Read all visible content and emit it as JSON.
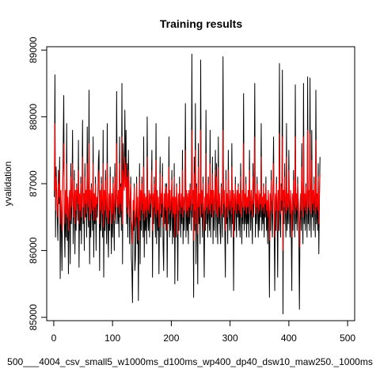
{
  "chart_data": {
    "type": "line",
    "title": "Training results",
    "xlabel": "500___4004_csv_small5_w1000ms_d100ms_wp400_dp40_dsw10_maw250._1000ms",
    "ylabel": "yvalidation",
    "xlim": [
      -12,
      512
    ],
    "ylim": [
      84950,
      89050
    ],
    "x_ticks": [
      0,
      100,
      200,
      300,
      400,
      500
    ],
    "y_ticks": [
      85000,
      86000,
      87000,
      88000,
      89000
    ],
    "x": {
      "start": 1,
      "end": 500,
      "step": 1
    },
    "colors": {
      "actual": "#000000",
      "predicted": "#ff0000",
      "axis": "#000000",
      "background": "#ffffff"
    },
    "series": [
      {
        "values": [
          86800,
          88630,
          86200,
          87250,
          86900,
          86500,
          86150,
          87200,
          86700,
          87400,
          85580,
          86900,
          86300,
          85700,
          86800,
          87500,
          88320,
          86400,
          85900,
          86900,
          86200,
          87900,
          86150,
          86700,
          85650,
          86500,
          86900,
          85800,
          87300,
          86400,
          86850,
          87800,
          86100,
          86600,
          87200,
          85950,
          86900,
          86300,
          87000,
          86800,
          86450,
          87650,
          85750,
          86800,
          86300,
          87100,
          86100,
          86700,
          87950,
          86400,
          86850,
          86000,
          87300,
          86500,
          86900,
          86200,
          87850,
          86600,
          86350,
          88400,
          85800,
          86900,
          86200,
          87000,
          86650,
          86300,
          87700,
          85900,
          86800,
          86400,
          87100,
          86000,
          86750,
          86500,
          86800,
          87350,
          87500,
          85700,
          86900,
          86300,
          87100,
          86600,
          86200,
          87800,
          85600,
          86900,
          86300,
          87200,
          86500,
          86100,
          87900,
          86400,
          85900,
          86800,
          86300,
          87250,
          86600,
          85950,
          86850,
          86200,
          87100,
          86500,
          86000,
          87300,
          86600,
          86400,
          88380,
          86800,
          86400,
          86900,
          86200,
          87700,
          86500,
          87000,
          86300,
          88500,
          85800,
          87600,
          87100,
          86900,
          88100,
          87000,
          87800,
          86400,
          87300,
          86200,
          87500,
          86900,
          86100,
          86700,
          87100,
          85900,
          85700,
          85220,
          86600,
          86300,
          87000,
          85700,
          85880,
          86400,
          87100,
          86100,
          86650,
          85250,
          86500,
          87300,
          85800,
          86900,
          86300,
          87100,
          86600,
          86200,
          87700,
          85900,
          86800,
          86300,
          86700,
          86100,
          88000,
          86500,
          86300,
          86900,
          86200,
          86800,
          86500,
          86900,
          87500,
          85600,
          86800,
          86400,
          87100,
          86600,
          86200,
          87900,
          86100,
          86900,
          86300,
          86700,
          85650,
          86600,
          87400,
          86200,
          86800,
          86500,
          87300,
          86100,
          85700,
          86800,
          86400,
          87000,
          86300,
          87000,
          85600,
          86800,
          86400,
          87700,
          86200,
          86900,
          86300,
          86600,
          87200,
          86100,
          86700,
          86200,
          87300,
          85500,
          86700,
          86200,
          87000,
          86500,
          85550,
          86800,
          86300,
          87100,
          86600,
          86200,
          86800,
          86400,
          87500,
          86100,
          86700,
          86300,
          86800,
          88200,
          86200,
          86900,
          86300,
          86800,
          86100,
          86900,
          86400,
          87000,
          86600,
          86300,
          88940,
          86500,
          86900,
          85300,
          87400,
          86300,
          88200,
          85800,
          87000,
          86500,
          85500,
          87600,
          86400,
          86800,
          86100,
          88850,
          86500,
          86900,
          86200,
          87100,
          86400,
          85600,
          86700,
          86300,
          88100,
          86400,
          86800,
          86200,
          87100,
          86500,
          86300,
          87800,
          86200,
          86900,
          86500,
          87400,
          86100,
          86900,
          86300,
          86700,
          87500,
          86200,
          87300,
          86500,
          86100,
          87700,
          86400,
          86800,
          86300,
          86100,
          87000,
          86600,
          86200,
          88900,
          86500,
          86900,
          86300,
          85600,
          87200,
          86400,
          86800,
          86100,
          87500,
          86600,
          86300,
          86900,
          86500,
          86200,
          87600,
          86400,
          86900,
          85400,
          86800,
          86300,
          87100,
          86600,
          86200,
          86900,
          86500,
          87000,
          86300,
          86800,
          86200,
          87300,
          86600,
          86100,
          86900,
          86400,
          88350,
          86300,
          86800,
          86400,
          87100,
          86200,
          86700,
          86400,
          86900,
          86200,
          87500,
          86600,
          86300,
          86900,
          86500,
          86100,
          87300,
          86500,
          86900,
          88500,
          86200,
          86800,
          86400,
          87100,
          86600,
          86200,
          86900,
          86300,
          86800,
          86500,
          87900,
          86300,
          86700,
          86400,
          87000,
          86200,
          86800,
          86500,
          87100,
          86300,
          86600,
          86100,
          86900,
          86400,
          85300,
          86800,
          86300,
          87200,
          86600,
          86200,
          86900,
          87700,
          86400,
          85400,
          86800,
          86300,
          87100,
          86600,
          85600,
          86900,
          86300,
          88800,
          86500,
          86200,
          87000,
          86600,
          88700,
          85050,
          86900,
          86400,
          87300,
          86600,
          86200,
          87900,
          86300,
          86800,
          86400,
          87500,
          86600,
          86200,
          86900,
          86400,
          85400,
          86800,
          86300,
          87200,
          86600,
          86200,
          88480,
          86400,
          86800,
          86300,
          87100,
          86600,
          86200,
          85120,
          86400,
          86800,
          86300,
          87600,
          86500,
          86100,
          88500,
          86400,
          86800,
          86300,
          87000,
          86600,
          86200,
          88600,
          86400,
          86900,
          86300,
          88580,
          86600,
          86200,
          87800,
          86500,
          86900,
          86300,
          87100,
          86600,
          86200,
          88400,
          86400,
          86800,
          86300,
          87300,
          85950,
          86700,
          87400
        ]
      },
      {
        "values": [
          86900,
          87900,
          86600,
          87100,
          86950,
          86700,
          86500,
          87000,
          86800,
          87200,
          86400,
          86900,
          86600,
          86300,
          86850,
          87250,
          87600,
          86650,
          86400,
          86900,
          86550,
          87300,
          86500,
          86800,
          86300,
          86700,
          86900,
          86450,
          87100,
          86650,
          86850,
          87300,
          86500,
          86750,
          87050,
          86400,
          86900,
          86600,
          86950,
          86850,
          86700,
          87200,
          86400,
          86850,
          86600,
          87000,
          86500,
          86800,
          87400,
          86650,
          86850,
          86450,
          87100,
          86700,
          86900,
          86550,
          87300,
          86750,
          86650,
          87600,
          86450,
          86900,
          86550,
          86950,
          86800,
          86600,
          87300,
          86450,
          86850,
          86650,
          87000,
          86450,
          86800,
          86700,
          86850,
          87100,
          87200,
          86400,
          86900,
          86600,
          87000,
          86750,
          86550,
          87300,
          86350,
          86900,
          86600,
          87050,
          86700,
          86500,
          87300,
          86650,
          86400,
          86850,
          86600,
          87100,
          86750,
          86400,
          86850,
          86550,
          87000,
          86700,
          86450,
          87100,
          86750,
          86650,
          87600,
          86850,
          86650,
          86900,
          86550,
          87300,
          86700,
          86950,
          86600,
          87700,
          86400,
          87200,
          87000,
          86900,
          87400,
          86950,
          87300,
          86650,
          87100,
          86550,
          87200,
          86900,
          86500,
          86800,
          87000,
          86450,
          86350,
          86100,
          86750,
          86600,
          86950,
          86350,
          86450,
          86650,
          87000,
          86500,
          86800,
          86150,
          86700,
          87100,
          86450,
          86900,
          86600,
          87000,
          86750,
          86550,
          87250,
          86450,
          86850,
          86600,
          86800,
          86500,
          87400,
          86700,
          86600,
          86900,
          86550,
          86850,
          86700,
          86900,
          87200,
          86300,
          86850,
          86650,
          87000,
          86750,
          86550,
          87350,
          86500,
          86900,
          86600,
          86800,
          86350,
          86750,
          87150,
          86550,
          86850,
          86700,
          87100,
          86500,
          86350,
          86850,
          86650,
          86950,
          86600,
          86950,
          86300,
          86850,
          86650,
          87250,
          86550,
          86900,
          86600,
          86750,
          87050,
          86500,
          86800,
          86550,
          87100,
          86200,
          86800,
          86550,
          86950,
          86700,
          86250,
          86850,
          86600,
          87000,
          86750,
          86550,
          86850,
          86650,
          87200,
          86500,
          86800,
          86600,
          86850,
          87500,
          86550,
          86900,
          86600,
          86850,
          86500,
          86900,
          86650,
          86950,
          86750,
          86600,
          87800,
          86700,
          86900,
          86150,
          87150,
          86600,
          87500,
          86400,
          86950,
          86700,
          86250,
          87250,
          86650,
          86850,
          86500,
          87800,
          86700,
          86900,
          86550,
          87000,
          86650,
          86300,
          86800,
          86600,
          87450,
          86650,
          86850,
          86550,
          87000,
          86700,
          86600,
          87300,
          86550,
          86900,
          86700,
          87150,
          86500,
          86900,
          86600,
          86800,
          87200,
          86550,
          87100,
          86700,
          86500,
          87250,
          86650,
          86850,
          86600,
          86500,
          86950,
          86750,
          86550,
          87800,
          86700,
          86900,
          86600,
          86300,
          87050,
          86650,
          86850,
          86500,
          87200,
          86750,
          86600,
          86900,
          86700,
          86550,
          87250,
          86650,
          86900,
          86200,
          86850,
          86600,
          87000,
          86750,
          86550,
          86900,
          86700,
          86950,
          86600,
          86850,
          86550,
          87100,
          86750,
          86500,
          86900,
          86650,
          87600,
          86600,
          86850,
          86650,
          87000,
          86550,
          86800,
          86650,
          86900,
          86550,
          87200,
          86750,
          86600,
          86900,
          86700,
          86500,
          87100,
          86700,
          86900,
          87700,
          86550,
          86850,
          86650,
          87000,
          86750,
          86550,
          86900,
          86600,
          86850,
          86700,
          87400,
          86600,
          86800,
          86650,
          86950,
          86550,
          86850,
          86700,
          87000,
          86600,
          86750,
          86500,
          86900,
          86650,
          86150,
          86850,
          86600,
          87050,
          86750,
          86550,
          86900,
          87300,
          86650,
          86200,
          86850,
          86600,
          87000,
          86750,
          86300,
          86900,
          86600,
          87750,
          86700,
          86550,
          86950,
          86750,
          87700,
          86000,
          86900,
          86650,
          87100,
          86750,
          86550,
          87400,
          86600,
          86850,
          86650,
          87200,
          86750,
          86550,
          86900,
          86650,
          86200,
          86850,
          86600,
          87050,
          86750,
          86550,
          87700,
          86650,
          86850,
          86600,
          87000,
          86750,
          86550,
          86050,
          86650,
          86850,
          86600,
          87250,
          86700,
          86500,
          87700,
          86650,
          86850,
          86600,
          86950,
          86750,
          86550,
          87800,
          86650,
          86900,
          86600,
          87750,
          86750,
          86550,
          87350,
          86700,
          86900,
          86600,
          87000,
          86750,
          86550,
          87650,
          86650,
          86850,
          86600,
          87100,
          86400,
          86800,
          87150
        ]
      }
    ]
  }
}
